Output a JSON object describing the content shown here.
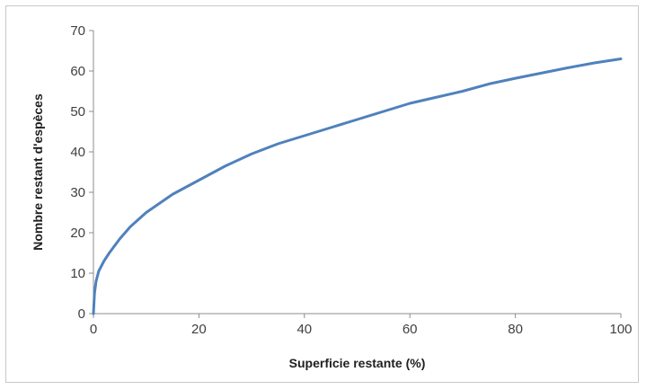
{
  "chart_data": {
    "type": "line",
    "title": "",
    "xlabel": "Superficie restante (%)",
    "ylabel": "Nombre restant d'espèces",
    "xlim": [
      0,
      100
    ],
    "ylim": [
      0,
      70
    ],
    "xticks": [
      0,
      20,
      40,
      60,
      80,
      100
    ],
    "yticks": [
      0,
      10,
      20,
      30,
      40,
      50,
      60,
      70
    ],
    "grid": false,
    "legend": "none",
    "series": [
      {
        "color": "#4f81bd",
        "x": [
          0,
          0.2,
          0.5,
          1,
          2,
          3,
          5,
          7,
          10,
          15,
          20,
          25,
          30,
          35,
          40,
          45,
          50,
          55,
          60,
          65,
          70,
          75,
          80,
          85,
          90,
          95,
          100
        ],
        "y": [
          0,
          5,
          8,
          10.5,
          13,
          15,
          18.5,
          21.5,
          25,
          29.5,
          33,
          36.5,
          39.5,
          42,
          44,
          46,
          48,
          50,
          52,
          53.5,
          55,
          56.8,
          58.2,
          59.5,
          60.8,
          62,
          63
        ]
      }
    ]
  }
}
